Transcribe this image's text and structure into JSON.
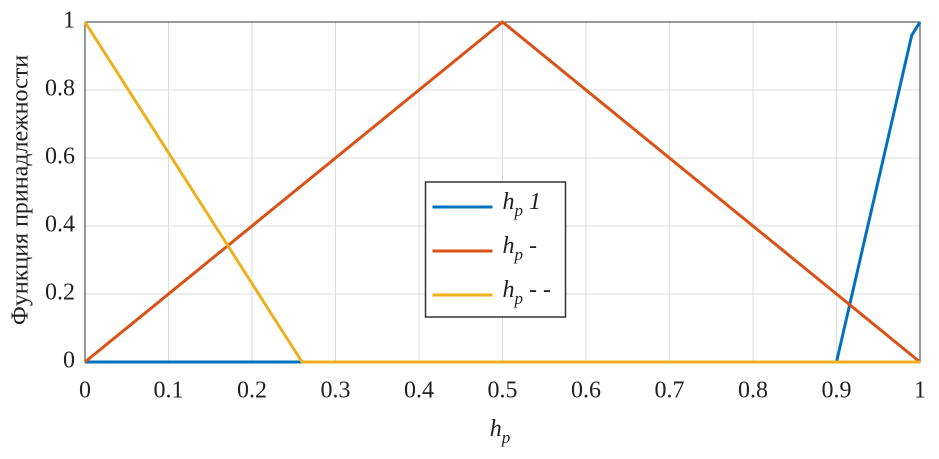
{
  "chart_data": {
    "type": "line",
    "xlabel": "hp",
    "ylabel": "Функция принадлежности",
    "series": [
      {
        "name": "hp 1",
        "color": "#0072bd",
        "x": [
          0,
          0.9,
          0.99,
          1
        ],
        "values": [
          0,
          0,
          0.96,
          1
        ]
      },
      {
        "name": "hp -",
        "color": "#d95319",
        "x": [
          0,
          0.5,
          1
        ],
        "values": [
          0,
          1,
          0
        ]
      },
      {
        "name": "hp - -",
        "color": "#edb120",
        "x": [
          0,
          0.26,
          1
        ],
        "values": [
          1,
          0,
          0
        ]
      }
    ],
    "xlim": [
      0,
      1
    ],
    "ylim": [
      0,
      1
    ],
    "xticks": [
      0,
      0.1,
      0.2,
      0.3,
      0.4,
      0.5,
      0.6,
      0.7,
      0.8,
      0.9,
      1
    ],
    "yticks": [
      0,
      0.2,
      0.4,
      0.6,
      0.8,
      1
    ],
    "grid": true,
    "legend": "center"
  }
}
